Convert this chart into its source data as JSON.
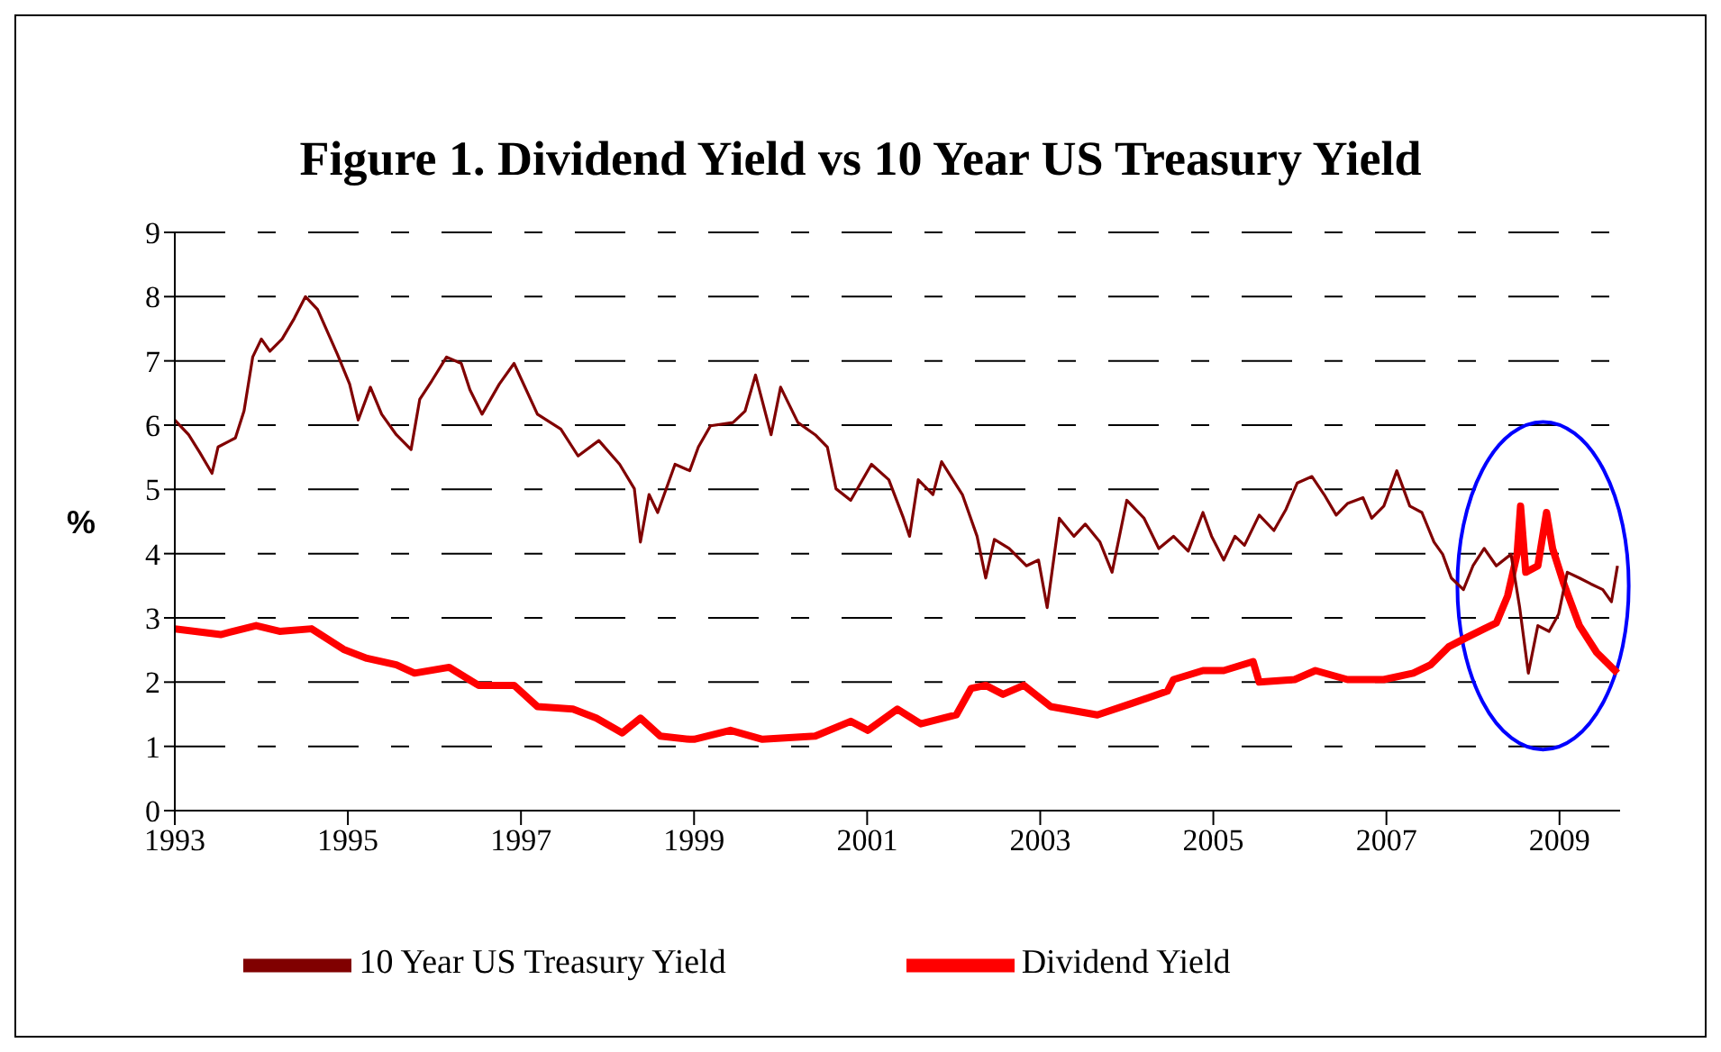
{
  "chart_data": {
    "type": "line",
    "title": "Figure 1. Dividend Yield vs 10 Year US Treasury Yield",
    "ylabel": "%",
    "xlim": [
      1993,
      2009.7
    ],
    "xticks": [
      1993,
      1995,
      1997,
      1999,
      2001,
      2003,
      2005,
      2007,
      2009
    ],
    "ylim": [
      0,
      9
    ],
    "yticks": [
      0,
      1,
      2,
      3,
      4,
      5,
      6,
      7,
      8,
      9
    ],
    "grid": "y",
    "legend": "bottom",
    "marker": "none",
    "series": [
      {
        "name": "Dividend Yield",
        "color": "#ff0000",
        "x": [
          1993.0,
          1993.53,
          1993.94,
          1994.21,
          1994.58,
          1994.95,
          1995.22,
          1995.56,
          1995.77,
          1996.17,
          1996.51,
          1996.92,
          1997.19,
          1997.6,
          1997.87,
          1998.17,
          1998.38,
          1998.61,
          1998.95,
          1999.0,
          1999.42,
          1999.79,
          2000.4,
          2000.81,
          2001.01,
          2001.35,
          2001.62,
          2002.03,
          2002.2,
          2002.37,
          2002.57,
          2002.81,
          2003.12,
          2003.66,
          2004.06,
          2004.47,
          2004.54,
          2004.88,
          2005.12,
          2005.46,
          2005.53,
          2005.94,
          2006.18,
          2006.55,
          2006.97,
          2007.31,
          2007.51,
          2007.72,
          2007.92,
          2008.13,
          2008.27,
          2008.4,
          2008.51,
          2008.55,
          2008.61,
          2008.75,
          2008.85,
          2008.92,
          2009.05,
          2009.23,
          2009.43,
          2009.67
        ],
        "values": [
          2.83,
          2.74,
          2.88,
          2.79,
          2.83,
          2.51,
          2.37,
          2.27,
          2.14,
          2.23,
          1.95,
          1.95,
          1.62,
          1.58,
          1.44,
          1.21,
          1.44,
          1.16,
          1.11,
          1.11,
          1.25,
          1.11,
          1.16,
          1.39,
          1.25,
          1.58,
          1.35,
          1.49,
          1.9,
          1.95,
          1.81,
          1.95,
          1.62,
          1.49,
          1.67,
          1.86,
          2.04,
          2.18,
          2.18,
          2.32,
          2.0,
          2.04,
          2.18,
          2.04,
          2.04,
          2.14,
          2.27,
          2.55,
          2.69,
          2.83,
          2.92,
          3.34,
          3.99,
          4.74,
          3.71,
          3.81,
          4.64,
          4.08,
          3.53,
          2.88,
          2.46,
          2.14
        ]
      },
      {
        "name": "10 Year US Treasury Yield",
        "color": "#800000",
        "x": [
          1993.0,
          1993.16,
          1993.29,
          1993.43,
          1993.5,
          1993.7,
          1993.8,
          1993.9,
          1994.0,
          1994.1,
          1994.24,
          1994.38,
          1994.51,
          1994.65,
          1994.88,
          1995.02,
          1995.12,
          1995.26,
          1995.39,
          1995.56,
          1995.73,
          1995.83,
          1995.97,
          1996.14,
          1996.31,
          1996.41,
          1996.55,
          1996.75,
          1996.92,
          1997.19,
          1997.46,
          1997.66,
          1997.9,
          1998.14,
          1998.31,
          1998.38,
          1998.48,
          1998.58,
          1998.78,
          1998.95,
          1999.05,
          1999.19,
          1999.45,
          1999.59,
          1999.71,
          1999.89,
          2000.0,
          2000.2,
          2000.4,
          2000.54,
          2000.64,
          2000.81,
          2001.05,
          2001.25,
          2001.42,
          2001.49,
          2001.59,
          2001.76,
          2001.86,
          2002.1,
          2002.27,
          2002.37,
          2002.47,
          2002.64,
          2002.84,
          2002.98,
          2003.08,
          2003.22,
          2003.39,
          2003.52,
          2003.69,
          2003.83,
          2004.0,
          2004.2,
          2004.37,
          2004.54,
          2004.71,
          2004.88,
          2004.98,
          2005.12,
          2005.25,
          2005.36,
          2005.53,
          2005.7,
          2005.84,
          2005.97,
          2006.14,
          2006.28,
          2006.42,
          2006.55,
          2006.73,
          2006.83,
          2006.97,
          2007.12,
          2007.27,
          2007.41,
          2007.55,
          2007.65,
          2007.75,
          2007.89,
          2008.0,
          2008.13,
          2008.27,
          2008.44,
          2008.54,
          2008.64,
          2008.75,
          2008.88,
          2008.99,
          2009.09,
          2009.23,
          2009.36,
          2009.5,
          2009.6,
          2009.67
        ],
        "values": [
          6.08,
          5.85,
          5.57,
          5.25,
          5.66,
          5.8,
          6.22,
          7.06,
          7.34,
          7.15,
          7.34,
          7.66,
          8.0,
          7.8,
          7.1,
          6.64,
          6.08,
          6.59,
          6.17,
          5.85,
          5.62,
          6.4,
          6.69,
          7.06,
          6.96,
          6.55,
          6.17,
          6.64,
          6.96,
          6.17,
          5.94,
          5.52,
          5.76,
          5.39,
          5.01,
          4.18,
          4.92,
          4.64,
          5.39,
          5.29,
          5.66,
          5.99,
          6.04,
          6.22,
          6.78,
          5.85,
          6.59,
          6.04,
          5.85,
          5.66,
          5.01,
          4.83,
          5.39,
          5.15,
          4.55,
          4.27,
          5.15,
          4.92,
          5.43,
          4.92,
          4.27,
          3.62,
          4.22,
          4.08,
          3.81,
          3.9,
          3.16,
          4.55,
          4.27,
          4.46,
          4.18,
          3.71,
          4.83,
          4.55,
          4.08,
          4.27,
          4.04,
          4.64,
          4.27,
          3.9,
          4.27,
          4.13,
          4.6,
          4.36,
          4.69,
          5.1,
          5.2,
          4.92,
          4.6,
          4.78,
          4.87,
          4.55,
          4.74,
          5.29,
          4.74,
          4.64,
          4.18,
          3.99,
          3.62,
          3.44,
          3.81,
          4.08,
          3.81,
          3.99,
          3.16,
          2.14,
          2.88,
          2.79,
          3.06,
          3.71,
          3.62,
          3.53,
          3.44,
          3.25,
          3.81
        ]
      }
    ]
  }
}
